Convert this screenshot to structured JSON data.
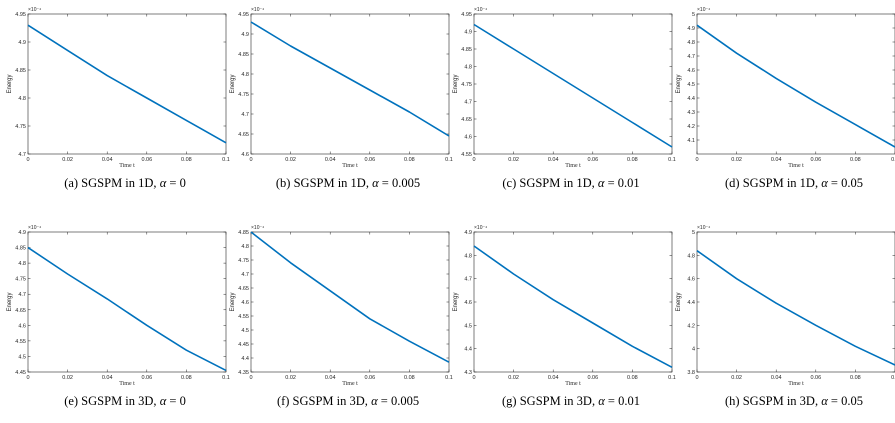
{
  "chart_data": [
    {
      "type": "line",
      "caption": "(a) SGSPM in 1D, α = 0",
      "caption_prefix": "(a) SGSPM in 1D, ",
      "caption_alpha": "0",
      "xlabel": "Time t",
      "ylabel": "Energy",
      "multiplier": "×10⁻⁴",
      "xlim": [
        0,
        0.1
      ],
      "ylim": [
        4.7,
        4.95
      ],
      "xticks": [
        "0",
        "0.02",
        "0.04",
        "0.06",
        "0.08",
        "0.1"
      ],
      "yticks": [
        "4.7",
        "4.75",
        "4.8",
        "4.85",
        "4.9",
        "4.95"
      ],
      "series": [
        {
          "color": "#0072BD",
          "x": [
            0,
            0.02,
            0.04,
            0.06,
            0.08,
            0.1
          ],
          "y": [
            4.93,
            4.885,
            4.84,
            4.8,
            4.76,
            4.72
          ]
        }
      ]
    },
    {
      "type": "line",
      "caption": "(b) SGSPM in 1D, α = 0.005",
      "caption_prefix": "(b) SGSPM in 1D, ",
      "caption_alpha": "0.005",
      "xlabel": "Time t",
      "ylabel": "Energy",
      "multiplier": "×10⁻⁴",
      "xlim": [
        0,
        0.1
      ],
      "ylim": [
        4.6,
        4.95
      ],
      "xticks": [
        "0",
        "0.02",
        "0.04",
        "0.06",
        "0.08",
        "0.1"
      ],
      "yticks": [
        "4.6",
        "4.65",
        "4.7",
        "4.75",
        "4.8",
        "4.85",
        "4.9",
        "4.95"
      ],
      "series": [
        {
          "color": "#0072BD",
          "x": [
            0,
            0.02,
            0.04,
            0.06,
            0.08,
            0.1
          ],
          "y": [
            4.93,
            4.87,
            4.815,
            4.76,
            4.705,
            4.645
          ]
        }
      ]
    },
    {
      "type": "line",
      "caption": "(c) SGSPM in 1D, α = 0.01",
      "caption_prefix": "(c) SGSPM in 1D, ",
      "caption_alpha": "0.01",
      "xlabel": "Time t",
      "ylabel": "Energy",
      "multiplier": "×10⁻⁴",
      "xlim": [
        0,
        0.1
      ],
      "ylim": [
        4.55,
        4.95
      ],
      "xticks": [
        "0",
        "0.02",
        "0.04",
        "0.06",
        "0.08",
        "0.1"
      ],
      "yticks": [
        "4.55",
        "4.6",
        "4.65",
        "4.7",
        "4.75",
        "4.8",
        "4.85",
        "4.9",
        "4.95"
      ],
      "series": [
        {
          "color": "#0072BD",
          "x": [
            0,
            0.02,
            0.04,
            0.06,
            0.08,
            0.1
          ],
          "y": [
            4.92,
            4.85,
            4.78,
            4.71,
            4.64,
            4.57
          ]
        }
      ]
    },
    {
      "type": "line",
      "caption": "(d) SGSPM in 1D, α = 0.05",
      "caption_prefix": "(d) SGSPM in 1D, ",
      "caption_alpha": "0.05",
      "xlabel": "Time t",
      "ylabel": "Energy",
      "multiplier": "×10⁻⁴",
      "xlim": [
        0,
        0.1
      ],
      "ylim": [
        4.0,
        5.0
      ],
      "xticks": [
        "0",
        "0.02",
        "0.04",
        "0.06",
        "0.08",
        "0.1"
      ],
      "yticks": [
        "4.1",
        "4.2",
        "4.3",
        "4.4",
        "4.5",
        "4.6",
        "4.7",
        "4.8",
        "4.9",
        "5"
      ],
      "series": [
        {
          "color": "#0072BD",
          "x": [
            0,
            0.02,
            0.04,
            0.06,
            0.08,
            0.1
          ],
          "y": [
            4.92,
            4.72,
            4.54,
            4.37,
            4.21,
            4.05
          ]
        }
      ]
    },
    {
      "type": "line",
      "caption": "(e) SGSPM in 3D, α = 0",
      "caption_prefix": "(e) SGSPM in 3D, ",
      "caption_alpha": "0",
      "xlabel": "Time t",
      "ylabel": "Energy",
      "multiplier": "×10⁻⁴",
      "xlim": [
        0,
        0.1
      ],
      "ylim": [
        4.45,
        4.9
      ],
      "xticks": [
        "0",
        "0.02",
        "0.04",
        "0.06",
        "0.08",
        "0.1"
      ],
      "yticks": [
        "4.45",
        "4.5",
        "4.55",
        "4.6",
        "4.65",
        "4.7",
        "4.75",
        "4.8",
        "4.85",
        "4.9"
      ],
      "series": [
        {
          "color": "#0072BD",
          "x": [
            0,
            0.02,
            0.04,
            0.06,
            0.08,
            0.1
          ],
          "y": [
            4.85,
            4.765,
            4.685,
            4.6,
            4.52,
            4.455
          ]
        }
      ]
    },
    {
      "type": "line",
      "caption": "(f) SGSPM in 3D, α = 0.005",
      "caption_prefix": "(f) SGSPM in 3D, ",
      "caption_alpha": "0.005",
      "xlabel": "Time t",
      "ylabel": "Energy",
      "multiplier": "×10⁻⁴",
      "xlim": [
        0,
        0.1
      ],
      "ylim": [
        4.35,
        4.85
      ],
      "xticks": [
        "0",
        "0.02",
        "0.04",
        "0.06",
        "0.08",
        "0.1"
      ],
      "yticks": [
        "4.35",
        "4.4",
        "4.45",
        "4.5",
        "4.55",
        "4.6",
        "4.65",
        "4.7",
        "4.75",
        "4.8",
        "4.85"
      ],
      "series": [
        {
          "color": "#0072BD",
          "x": [
            0,
            0.02,
            0.04,
            0.06,
            0.08,
            0.1
          ],
          "y": [
            4.85,
            4.74,
            4.64,
            4.54,
            4.46,
            4.385
          ]
        }
      ]
    },
    {
      "type": "line",
      "caption": "(g) SGSPM in 3D, α = 0.01",
      "caption_prefix": "(g) SGSPM in 3D, ",
      "caption_alpha": "0.01",
      "xlabel": "Time t",
      "ylabel": "Energy",
      "multiplier": "×10⁻⁴",
      "xlim": [
        0,
        0.1
      ],
      "ylim": [
        4.3,
        4.9
      ],
      "xticks": [
        "0",
        "0.02",
        "0.04",
        "0.06",
        "0.08",
        "0.1"
      ],
      "yticks": [
        "4.3",
        "4.4",
        "4.5",
        "4.6",
        "4.7",
        "4.8",
        "4.9"
      ],
      "series": [
        {
          "color": "#0072BD",
          "x": [
            0,
            0.02,
            0.04,
            0.06,
            0.08,
            0.1
          ],
          "y": [
            4.84,
            4.72,
            4.61,
            4.51,
            4.41,
            4.32
          ]
        }
      ]
    },
    {
      "type": "line",
      "caption": "(h) SGSPM in 3D, α = 0.05",
      "caption_prefix": "(h) SGSPM in 3D, ",
      "caption_alpha": "0.05",
      "xlabel": "Time t",
      "ylabel": "Energy",
      "multiplier": "×10⁻⁴",
      "xlim": [
        0,
        0.1
      ],
      "ylim": [
        3.8,
        5.0
      ],
      "xticks": [
        "0",
        "0.02",
        "0.04",
        "0.06",
        "0.08",
        "0.1"
      ],
      "yticks": [
        "3.8",
        "4",
        "4.2",
        "4.4",
        "4.6",
        "4.8",
        "5"
      ],
      "series": [
        {
          "color": "#0072BD",
          "x": [
            0,
            0.02,
            0.04,
            0.06,
            0.08,
            0.1
          ],
          "y": [
            4.84,
            4.6,
            4.39,
            4.2,
            4.02,
            3.86
          ]
        }
      ]
    }
  ]
}
